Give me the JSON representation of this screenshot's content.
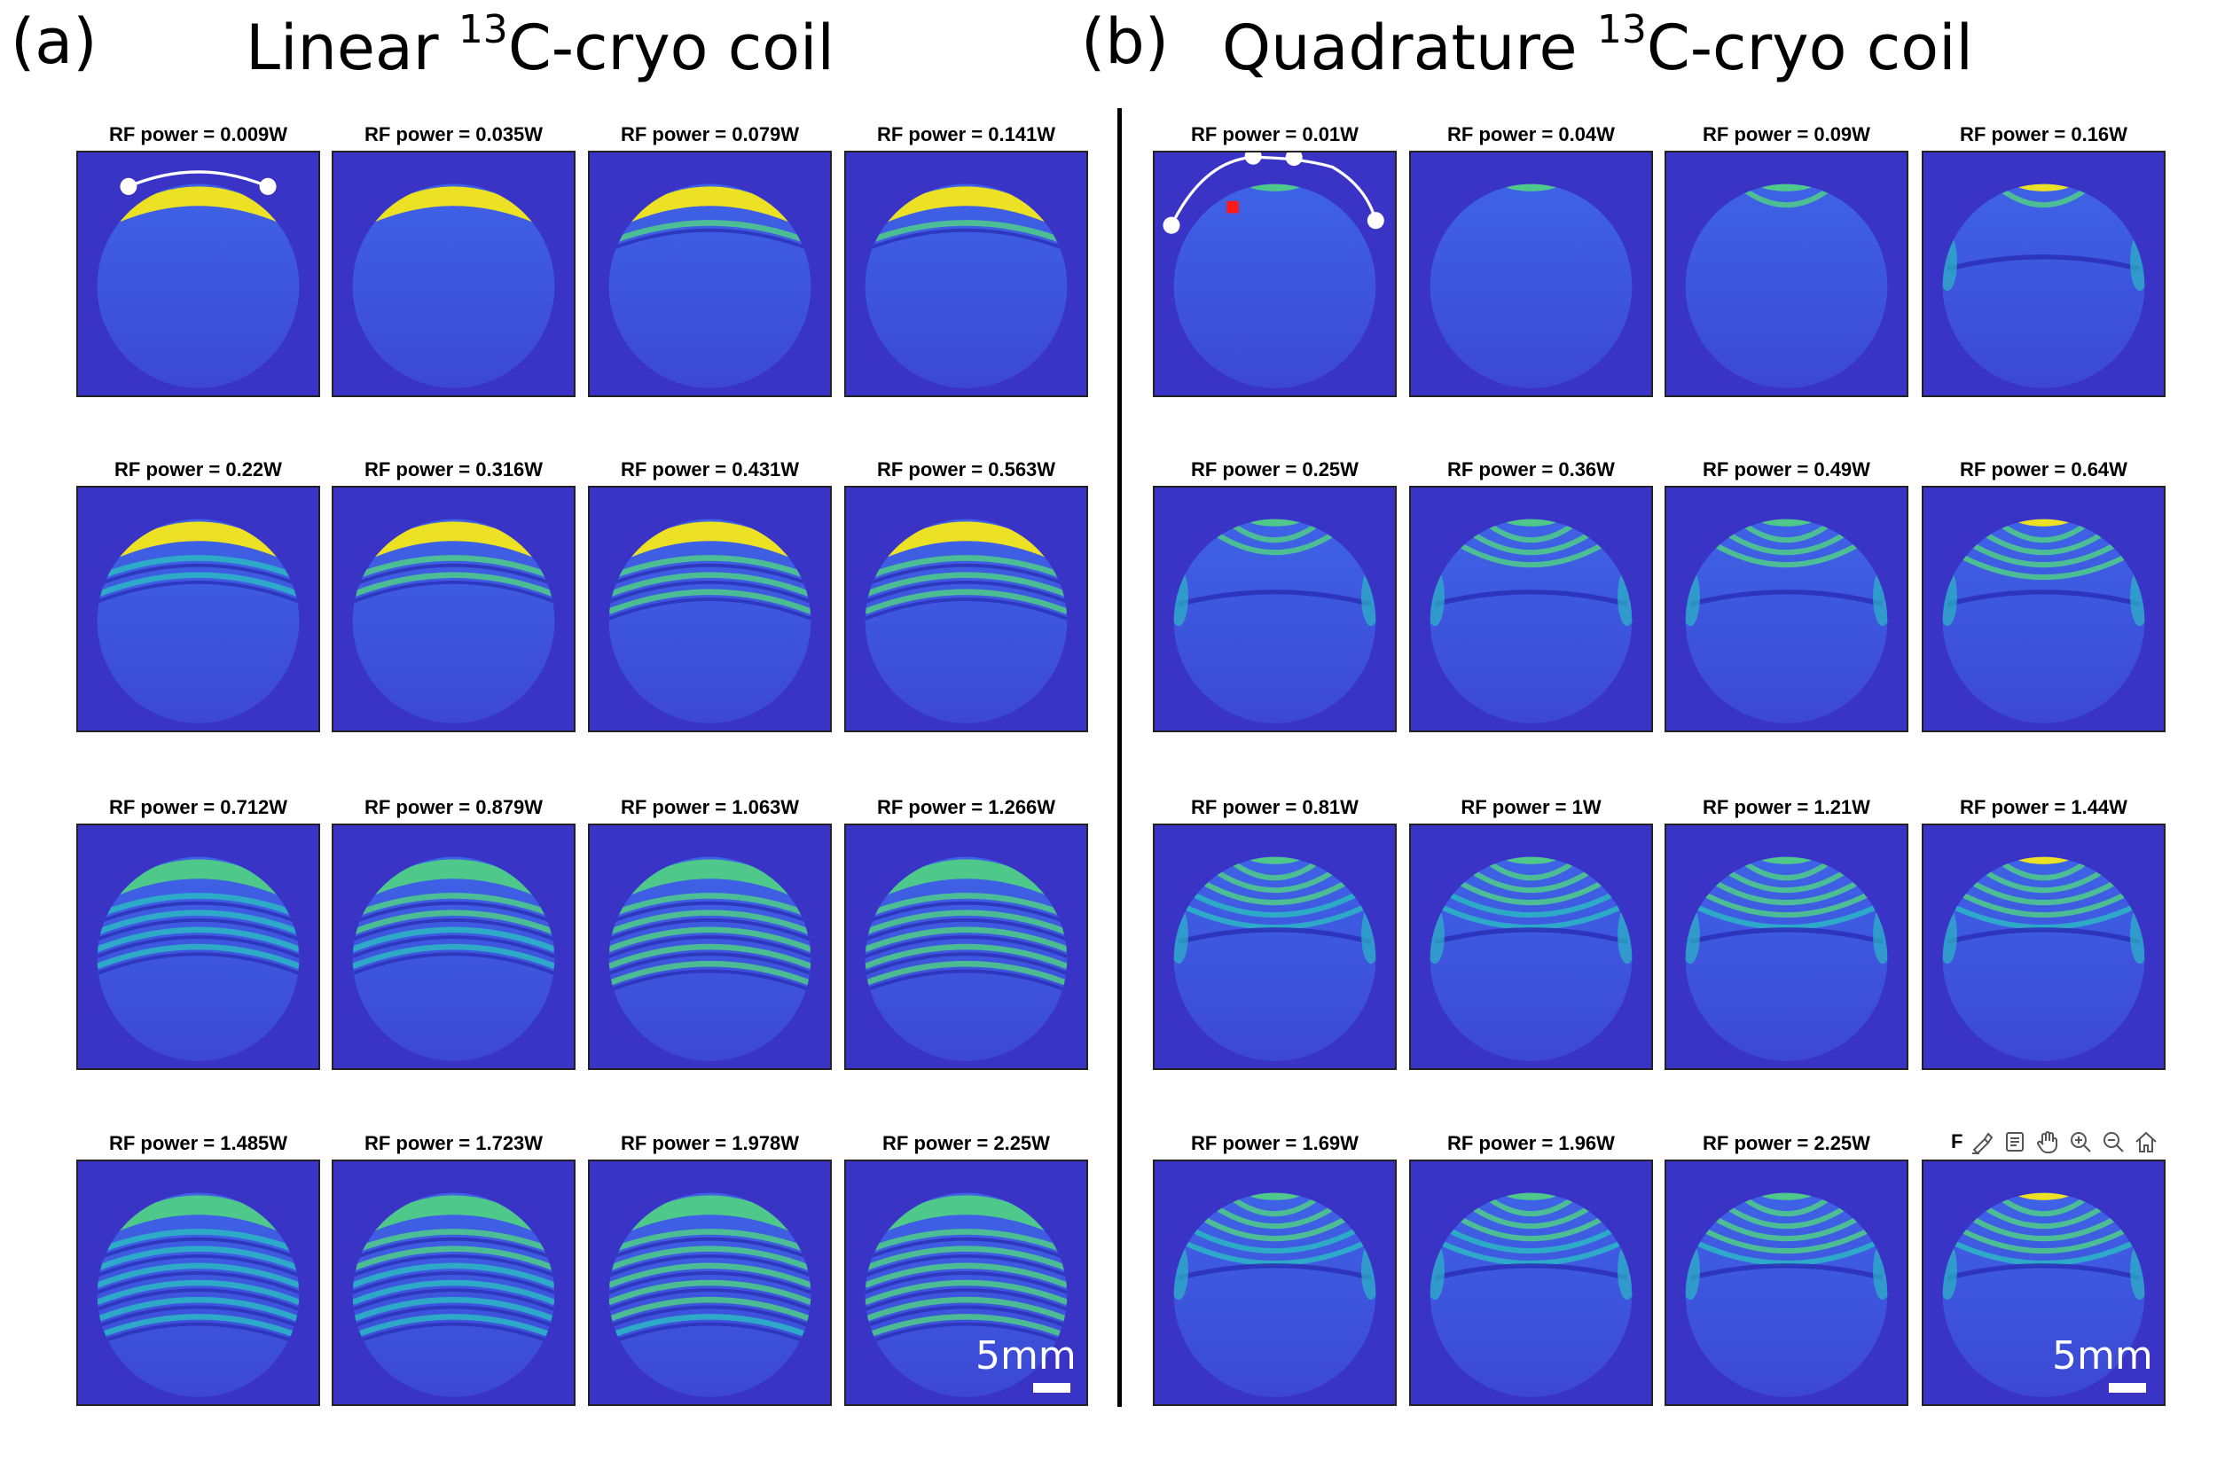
{
  "panels": {
    "a": {
      "letter": "(a)",
      "title_pre": "Linear ",
      "title_sup": "13",
      "title_post": "C-cryo coil",
      "scale_label": "5mm"
    },
    "b": {
      "letter": "(b)",
      "title_pre": "Quadrature ",
      "title_sup": "13",
      "title_post": "C-cryo coil",
      "scale_label": "5mm"
    }
  },
  "linear_tiles": [
    "RF power = 0.009W",
    "RF power = 0.035W",
    "RF power = 0.079W",
    "RF power = 0.141W",
    "RF power = 0.22W",
    "RF power = 0.316W",
    "RF power = 0.431W",
    "RF power = 0.563W",
    "RF power = 0.712W",
    "RF power = 0.879W",
    "RF power = 1.063W",
    "RF power = 1.266W",
    "RF power = 1.485W",
    "RF power = 1.723W",
    "RF power = 1.978W",
    "RF power = 2.25W"
  ],
  "quadrature_tiles": [
    "RF power = 0.01W",
    "RF power = 0.04W",
    "RF power = 0.09W",
    "RF power = 0.16W",
    "RF power = 0.25W",
    "RF power = 0.36W",
    "RF power = 0.49W",
    "RF power = 0.64W",
    "RF power = 0.81W",
    "RF power = 1W",
    "RF power = 1.21W",
    "RF power = 1.44W",
    "RF power = 1.69W",
    "RF power = 1.96W",
    "RF power = 2.25W",
    "F"
  ],
  "toolbar": {
    "prefix": "F",
    "icons": [
      "brush-icon",
      "data-tips-icon",
      "pan-hand-icon",
      "zoom-in-icon",
      "zoom-out-icon",
      "home-icon"
    ]
  },
  "colors": {
    "background": "#3a34c6",
    "phantom_dark": "#3c48d4",
    "phantom_mid": "#3e63e6",
    "cyan": "#2cb7c4",
    "green": "#4fce86",
    "yellow": "#f6e81a",
    "marker_red": "#ff1a1a"
  }
}
